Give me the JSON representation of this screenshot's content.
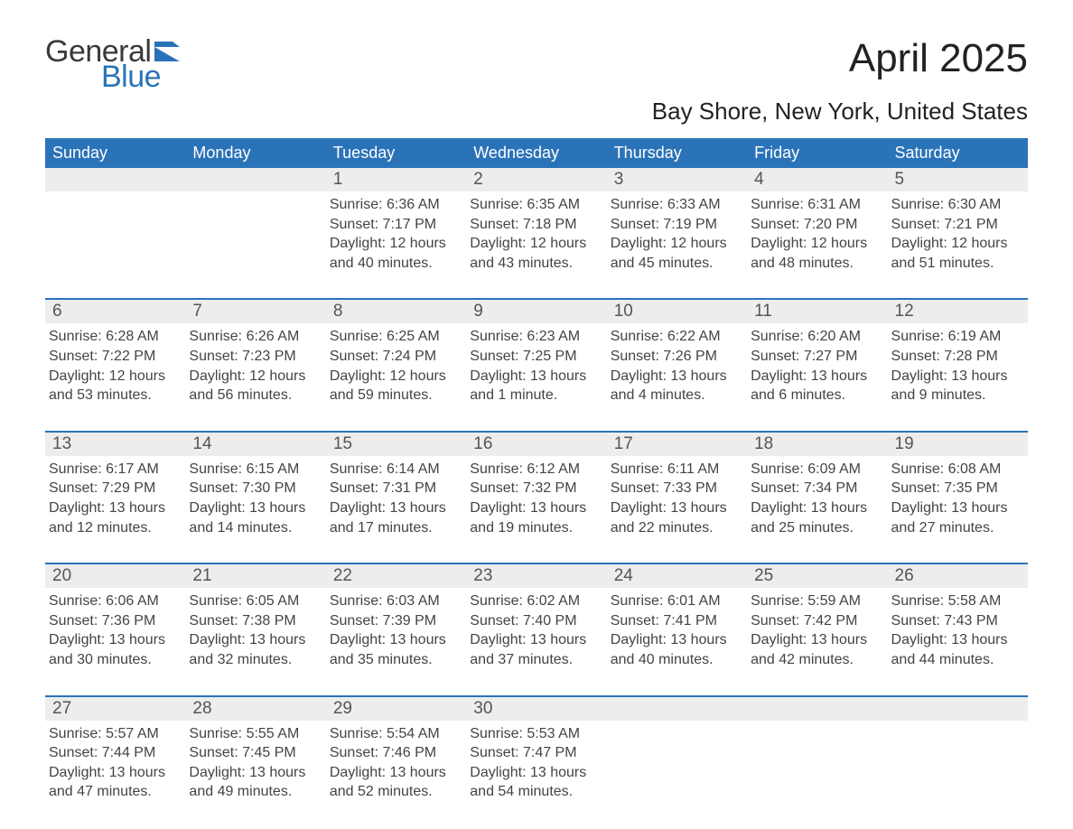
{
  "brand": {
    "word1": "General",
    "word2": "Blue",
    "flag_color": "#2b73b8"
  },
  "title": "April 2025",
  "subtitle": "Bay Shore, New York, United States",
  "calendar": {
    "header_bg": "#2b73b8",
    "header_fg": "#ffffff",
    "daynum_bg": "#ededed",
    "text_color": "#444444",
    "sep_color": "#2b73b8",
    "day_headers": [
      "Sunday",
      "Monday",
      "Tuesday",
      "Wednesday",
      "Thursday",
      "Friday",
      "Saturday"
    ],
    "weeks": [
      [
        null,
        null,
        {
          "n": "1",
          "sunrise": "6:36 AM",
          "sunset": "7:17 PM",
          "daylight": "12 hours and 40 minutes."
        },
        {
          "n": "2",
          "sunrise": "6:35 AM",
          "sunset": "7:18 PM",
          "daylight": "12 hours and 43 minutes."
        },
        {
          "n": "3",
          "sunrise": "6:33 AM",
          "sunset": "7:19 PM",
          "daylight": "12 hours and 45 minutes."
        },
        {
          "n": "4",
          "sunrise": "6:31 AM",
          "sunset": "7:20 PM",
          "daylight": "12 hours and 48 minutes."
        },
        {
          "n": "5",
          "sunrise": "6:30 AM",
          "sunset": "7:21 PM",
          "daylight": "12 hours and 51 minutes."
        }
      ],
      [
        {
          "n": "6",
          "sunrise": "6:28 AM",
          "sunset": "7:22 PM",
          "daylight": "12 hours and 53 minutes."
        },
        {
          "n": "7",
          "sunrise": "6:26 AM",
          "sunset": "7:23 PM",
          "daylight": "12 hours and 56 minutes."
        },
        {
          "n": "8",
          "sunrise": "6:25 AM",
          "sunset": "7:24 PM",
          "daylight": "12 hours and 59 minutes."
        },
        {
          "n": "9",
          "sunrise": "6:23 AM",
          "sunset": "7:25 PM",
          "daylight": "13 hours and 1 minute."
        },
        {
          "n": "10",
          "sunrise": "6:22 AM",
          "sunset": "7:26 PM",
          "daylight": "13 hours and 4 minutes."
        },
        {
          "n": "11",
          "sunrise": "6:20 AM",
          "sunset": "7:27 PM",
          "daylight": "13 hours and 6 minutes."
        },
        {
          "n": "12",
          "sunrise": "6:19 AM",
          "sunset": "7:28 PM",
          "daylight": "13 hours and 9 minutes."
        }
      ],
      [
        {
          "n": "13",
          "sunrise": "6:17 AM",
          "sunset": "7:29 PM",
          "daylight": "13 hours and 12 minutes."
        },
        {
          "n": "14",
          "sunrise": "6:15 AM",
          "sunset": "7:30 PM",
          "daylight": "13 hours and 14 minutes."
        },
        {
          "n": "15",
          "sunrise": "6:14 AM",
          "sunset": "7:31 PM",
          "daylight": "13 hours and 17 minutes."
        },
        {
          "n": "16",
          "sunrise": "6:12 AM",
          "sunset": "7:32 PM",
          "daylight": "13 hours and 19 minutes."
        },
        {
          "n": "17",
          "sunrise": "6:11 AM",
          "sunset": "7:33 PM",
          "daylight": "13 hours and 22 minutes."
        },
        {
          "n": "18",
          "sunrise": "6:09 AM",
          "sunset": "7:34 PM",
          "daylight": "13 hours and 25 minutes."
        },
        {
          "n": "19",
          "sunrise": "6:08 AM",
          "sunset": "7:35 PM",
          "daylight": "13 hours and 27 minutes."
        }
      ],
      [
        {
          "n": "20",
          "sunrise": "6:06 AM",
          "sunset": "7:36 PM",
          "daylight": "13 hours and 30 minutes."
        },
        {
          "n": "21",
          "sunrise": "6:05 AM",
          "sunset": "7:38 PM",
          "daylight": "13 hours and 32 minutes."
        },
        {
          "n": "22",
          "sunrise": "6:03 AM",
          "sunset": "7:39 PM",
          "daylight": "13 hours and 35 minutes."
        },
        {
          "n": "23",
          "sunrise": "6:02 AM",
          "sunset": "7:40 PM",
          "daylight": "13 hours and 37 minutes."
        },
        {
          "n": "24",
          "sunrise": "6:01 AM",
          "sunset": "7:41 PM",
          "daylight": "13 hours and 40 minutes."
        },
        {
          "n": "25",
          "sunrise": "5:59 AM",
          "sunset": "7:42 PM",
          "daylight": "13 hours and 42 minutes."
        },
        {
          "n": "26",
          "sunrise": "5:58 AM",
          "sunset": "7:43 PM",
          "daylight": "13 hours and 44 minutes."
        }
      ],
      [
        {
          "n": "27",
          "sunrise": "5:57 AM",
          "sunset": "7:44 PM",
          "daylight": "13 hours and 47 minutes."
        },
        {
          "n": "28",
          "sunrise": "5:55 AM",
          "sunset": "7:45 PM",
          "daylight": "13 hours and 49 minutes."
        },
        {
          "n": "29",
          "sunrise": "5:54 AM",
          "sunset": "7:46 PM",
          "daylight": "13 hours and 52 minutes."
        },
        {
          "n": "30",
          "sunrise": "5:53 AM",
          "sunset": "7:47 PM",
          "daylight": "13 hours and 54 minutes."
        },
        null,
        null,
        null
      ]
    ]
  },
  "labels": {
    "sunrise": "Sunrise: ",
    "sunset": "Sunset: ",
    "daylight": "Daylight: "
  }
}
